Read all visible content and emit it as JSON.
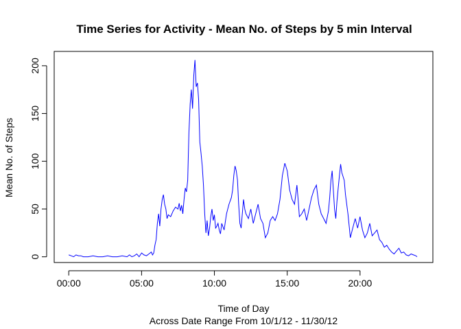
{
  "chart_data": {
    "type": "line",
    "title": "Time Series for Activity - Mean No. of Steps by 5 min Interval",
    "xlabel": "Time of Day",
    "subtitle": "Across Date Range From 10/1/12 - 11/30/12",
    "ylabel": "Mean No. of Steps",
    "xlim": [
      -60,
      1500
    ],
    "ylim": [
      -6,
      215
    ],
    "x_ticks": [
      0,
      300,
      600,
      900,
      1200
    ],
    "x_tick_labels": [
      "00:00",
      "05:00",
      "10:00",
      "15:00",
      "20:00"
    ],
    "y_ticks": [
      0,
      50,
      100,
      150,
      200
    ],
    "y_tick_labels": [
      "0",
      "50",
      "100",
      "150",
      "200"
    ],
    "series": [
      {
        "name": "Mean steps",
        "color": "#0000ff",
        "x_unit": "minutes since midnight",
        "x": [
          0,
          10,
          20,
          30,
          40,
          50,
          60,
          80,
          100,
          120,
          140,
          160,
          180,
          200,
          220,
          240,
          250,
          260,
          270,
          280,
          290,
          300,
          310,
          320,
          330,
          335,
          340,
          345,
          350,
          355,
          360,
          365,
          370,
          375,
          380,
          385,
          390,
          395,
          400,
          405,
          410,
          420,
          430,
          440,
          450,
          455,
          460,
          465,
          470,
          475,
          480,
          485,
          490,
          495,
          500,
          505,
          510,
          515,
          520,
          525,
          530,
          535,
          540,
          545,
          550,
          555,
          560,
          565,
          570,
          575,
          580,
          585,
          590,
          595,
          600,
          605,
          610,
          615,
          620,
          625,
          630,
          640,
          650,
          660,
          670,
          675,
          680,
          685,
          690,
          695,
          700,
          705,
          710,
          715,
          720,
          725,
          730,
          740,
          750,
          760,
          770,
          780,
          790,
          800,
          810,
          820,
          830,
          840,
          850,
          860,
          870,
          880,
          890,
          900,
          910,
          920,
          930,
          935,
          940,
          945,
          950,
          960,
          970,
          980,
          990,
          1000,
          1010,
          1020,
          1030,
          1040,
          1050,
          1060,
          1070,
          1075,
          1080,
          1085,
          1090,
          1095,
          1100,
          1105,
          1110,
          1115,
          1120,
          1125,
          1130,
          1135,
          1140,
          1150,
          1160,
          1170,
          1180,
          1190,
          1200,
          1210,
          1220,
          1230,
          1240,
          1250,
          1260,
          1270,
          1280,
          1290,
          1300,
          1310,
          1320,
          1330,
          1340,
          1350,
          1360,
          1370,
          1380,
          1390,
          1400,
          1410,
          1420,
          1430,
          1435
        ],
        "values": [
          2,
          1,
          0,
          2,
          1,
          1,
          0,
          0,
          1,
          0,
          0,
          1,
          0,
          0,
          1,
          0,
          2,
          0,
          1,
          3,
          0,
          4,
          2,
          1,
          3,
          4,
          5,
          2,
          4,
          12,
          18,
          35,
          45,
          32,
          50,
          60,
          65,
          55,
          50,
          40,
          44,
          42,
          48,
          52,
          50,
          56,
          48,
          54,
          45,
          60,
          72,
          68,
          80,
          130,
          160,
          175,
          155,
          190,
          206,
          178,
          182,
          165,
          120,
          108,
          95,
          75,
          45,
          25,
          38,
          22,
          30,
          42,
          50,
          38,
          44,
          30,
          32,
          35,
          28,
          24,
          35,
          28,
          45,
          55,
          62,
          70,
          85,
          95,
          90,
          80,
          55,
          35,
          30,
          45,
          60,
          50,
          45,
          40,
          50,
          35,
          45,
          55,
          40,
          35,
          20,
          25,
          38,
          42,
          38,
          45,
          60,
          85,
          98,
          90,
          70,
          60,
          55,
          65,
          75,
          60,
          42,
          45,
          50,
          38,
          50,
          62,
          70,
          75,
          55,
          45,
          40,
          35,
          48,
          62,
          80,
          90,
          70,
          50,
          40,
          58,
          72,
          85,
          97,
          88,
          84,
          80,
          65,
          45,
          20,
          30,
          40,
          30,
          42,
          28,
          20,
          25,
          35,
          22,
          25,
          28,
          18,
          15,
          10,
          12,
          8,
          5,
          3,
          6,
          9,
          4,
          5,
          2,
          1,
          3,
          2,
          1,
          0
        ]
      }
    ]
  }
}
